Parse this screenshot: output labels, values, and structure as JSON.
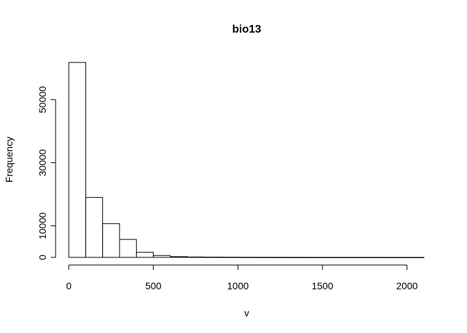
{
  "chart_data": {
    "type": "bar",
    "subtype": "histogram",
    "title": "bio13",
    "xlabel": "v",
    "ylabel": "Frequency",
    "bin_width": 100,
    "bins": [
      {
        "start": 0,
        "end": 100,
        "count": 61800
      },
      {
        "start": 100,
        "end": 200,
        "count": 19000
      },
      {
        "start": 200,
        "end": 300,
        "count": 10700
      },
      {
        "start": 300,
        "end": 400,
        "count": 5700
      },
      {
        "start": 400,
        "end": 500,
        "count": 1600
      },
      {
        "start": 500,
        "end": 600,
        "count": 600
      },
      {
        "start": 600,
        "end": 700,
        "count": 250
      },
      {
        "start": 700,
        "end": 800,
        "count": 120
      },
      {
        "start": 800,
        "end": 900,
        "count": 80
      },
      {
        "start": 900,
        "end": 1000,
        "count": 60
      },
      {
        "start": 1000,
        "end": 1100,
        "count": 40
      },
      {
        "start": 1100,
        "end": 1200,
        "count": 30
      },
      {
        "start": 1200,
        "end": 1300,
        "count": 25
      },
      {
        "start": 1300,
        "end": 1400,
        "count": 20
      },
      {
        "start": 1400,
        "end": 1500,
        "count": 15
      },
      {
        "start": 1500,
        "end": 1600,
        "count": 12
      },
      {
        "start": 1600,
        "end": 1700,
        "count": 10
      },
      {
        "start": 1700,
        "end": 1800,
        "count": 8
      },
      {
        "start": 1800,
        "end": 1900,
        "count": 6
      },
      {
        "start": 1900,
        "end": 2000,
        "count": 5
      },
      {
        "start": 2000,
        "end": 2100,
        "count": 4
      }
    ],
    "xlim": [
      0,
      2100
    ],
    "ylim": [
      0,
      61800
    ],
    "x_ticks": [
      0,
      500,
      1000,
      1500,
      2000
    ],
    "y_ticks": [
      0,
      10000,
      30000,
      50000
    ],
    "x_tick_labels": [
      "0",
      "500",
      "1000",
      "1500",
      "2000"
    ],
    "y_tick_labels": [
      "0",
      "10000",
      "30000",
      "50000"
    ],
    "grid": false,
    "legend": "none",
    "colors": {
      "bar_fill": "#ffffff",
      "bar_stroke": "#000000"
    }
  }
}
